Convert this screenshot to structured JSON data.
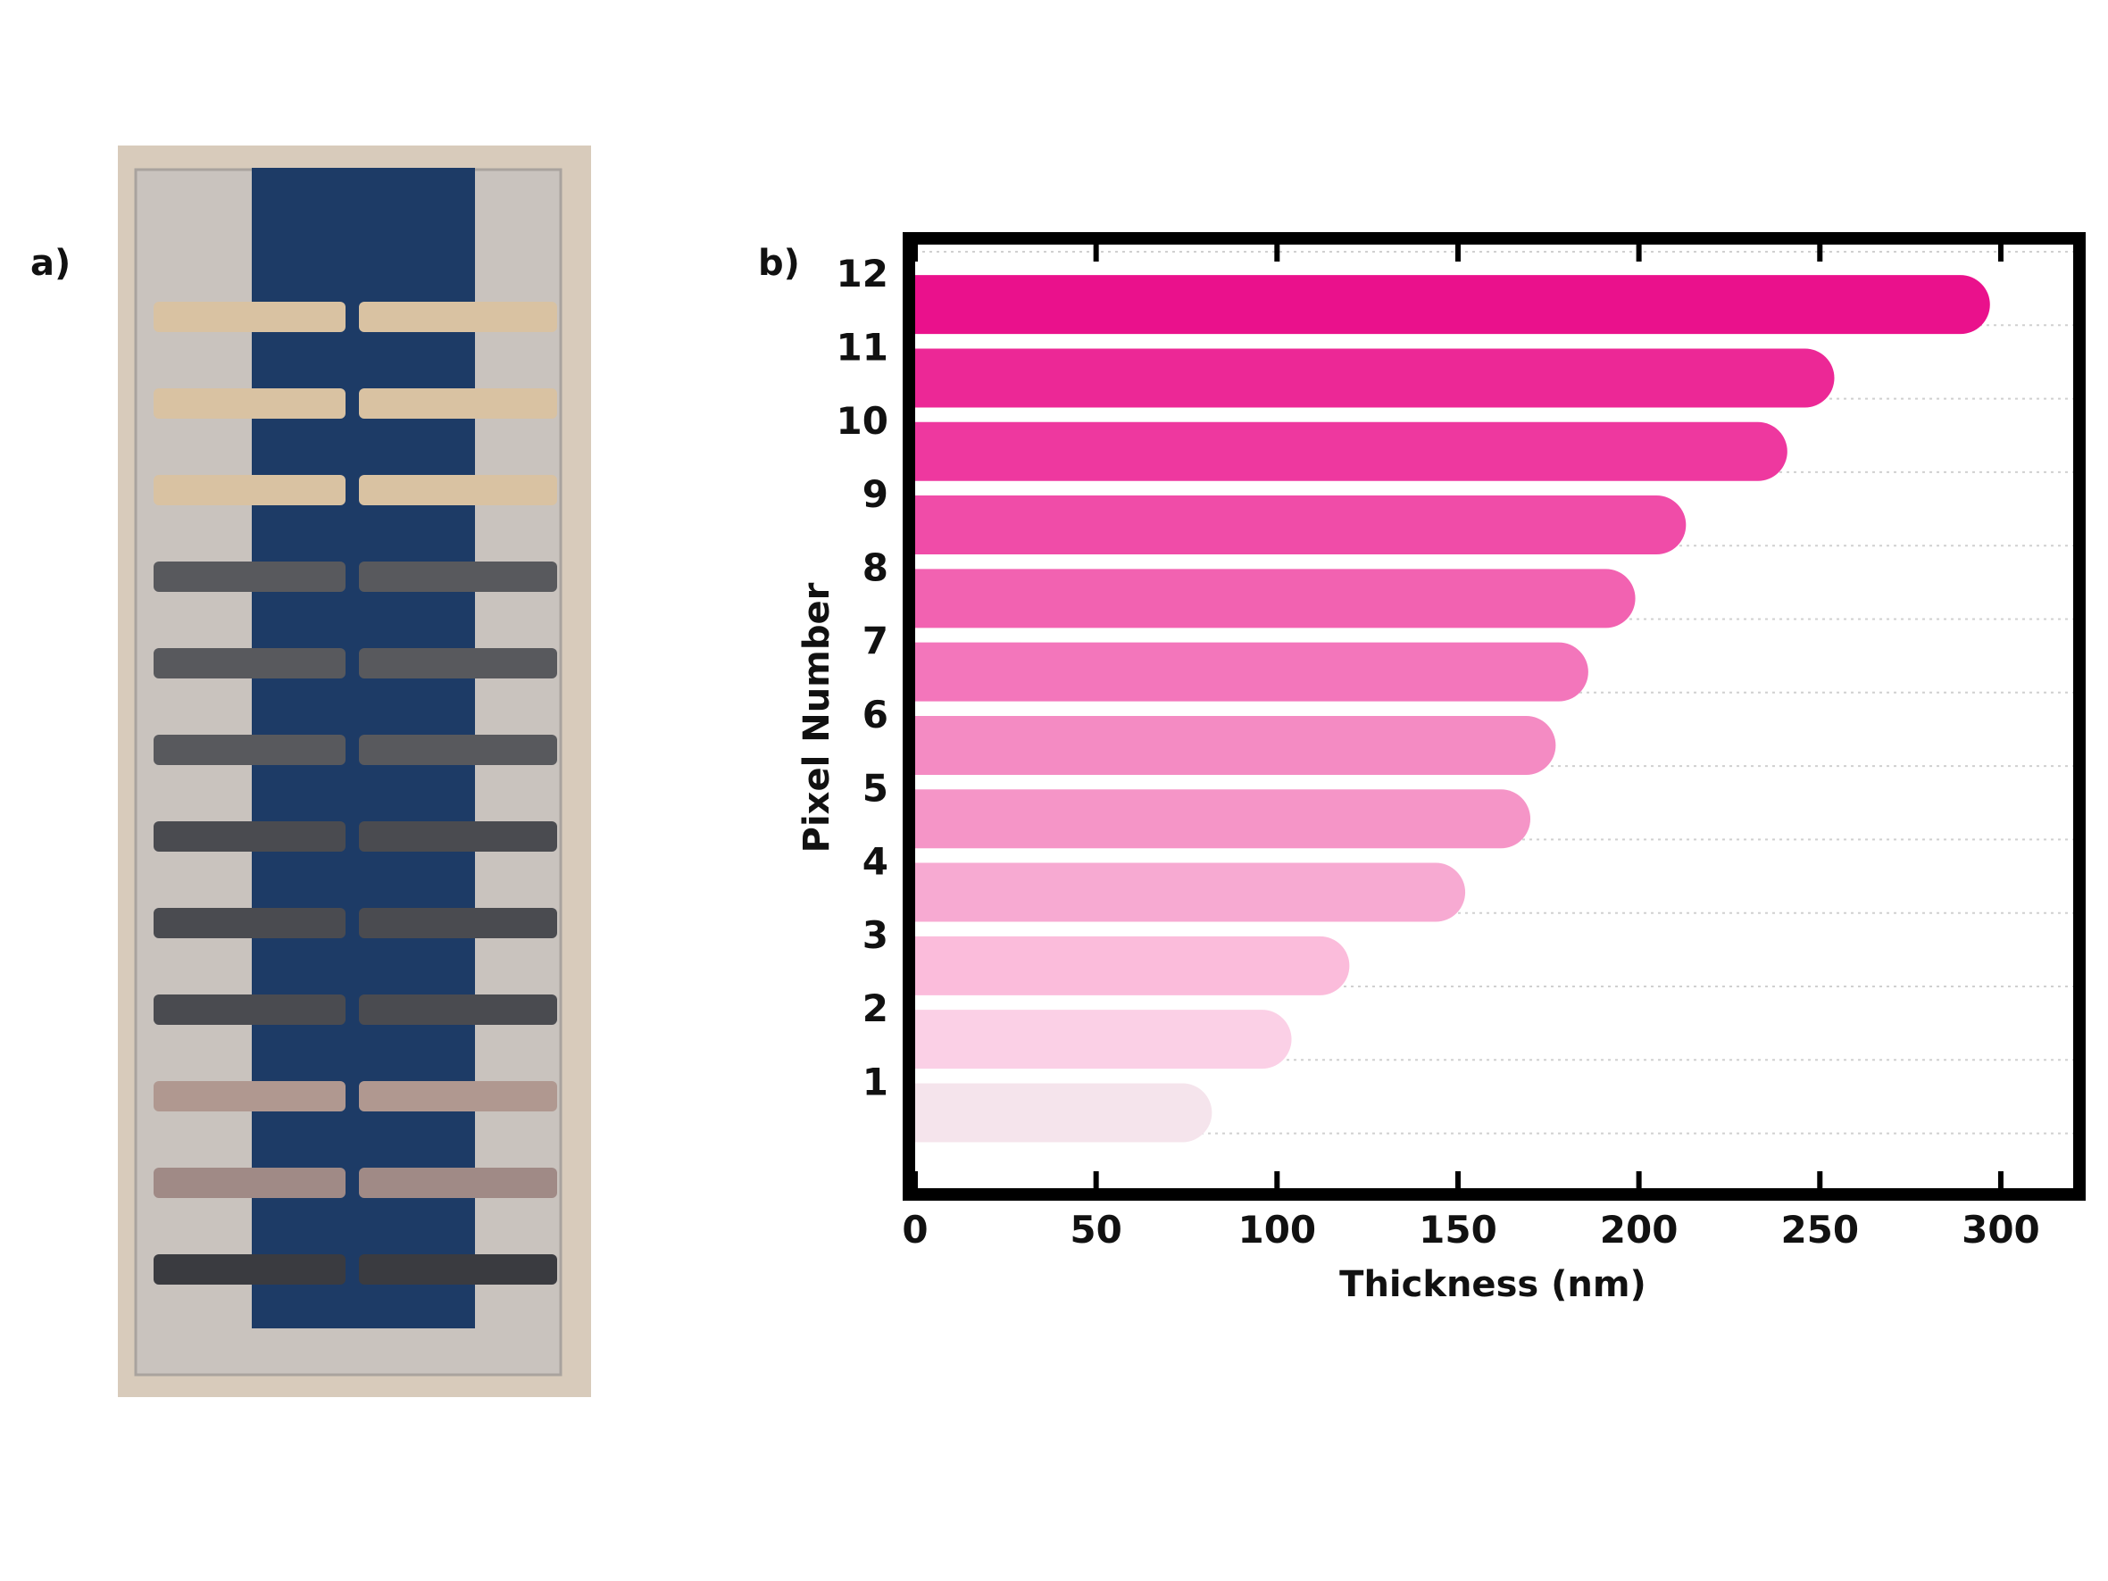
{
  "panels": {
    "a_label": "a)",
    "b_label": "b)"
  },
  "photo": {
    "background_color": "#d8cbbb",
    "film_color": "#1d3b66",
    "stripe_colors": [
      "#d9c2a2",
      "#d9c2a2",
      "#d9c2a2",
      "#58595d",
      "#58595d",
      "#58595d",
      "#4a4b50",
      "#4a4b50",
      "#4a4b50",
      "#b09890",
      "#a08a86",
      "#3a3b40"
    ]
  },
  "chart_data": {
    "type": "bar",
    "orientation": "horizontal",
    "xlabel": "Thickness (nm)",
    "ylabel": "Pixel Number",
    "xlim": [
      0,
      320
    ],
    "xticks": [
      0,
      50,
      100,
      150,
      200,
      250,
      300
    ],
    "categories": [
      "1",
      "2",
      "3",
      "4",
      "5",
      "6",
      "7",
      "8",
      "9",
      "10",
      "11",
      "12"
    ],
    "values": [
      82,
      104,
      120,
      152,
      170,
      177,
      186,
      199,
      213,
      241,
      254,
      297
    ],
    "colors": [
      "#f5e4ec",
      "#fbd0e6",
      "#fbbcdb",
      "#f7aad2",
      "#f595c7",
      "#f48bc3",
      "#f376bb",
      "#f262b1",
      "#f04ca8",
      "#ee389f",
      "#ec2896",
      "#ea118c"
    ],
    "grid": true
  }
}
